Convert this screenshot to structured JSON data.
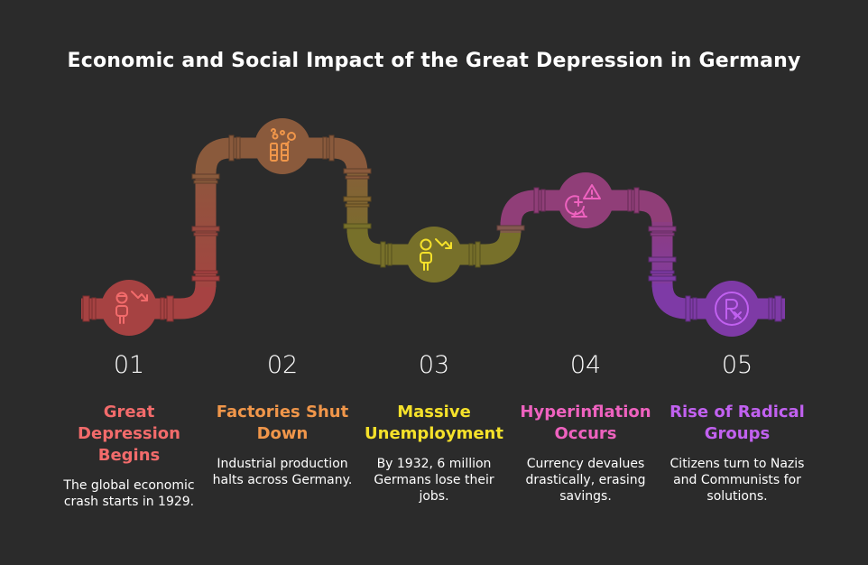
{
  "title": "Economic and Social Impact of the Great Depression in Germany",
  "steps": [
    {
      "number": "01",
      "heading": "Great Depression Begins",
      "description": "The global economic crash starts in 1929.",
      "color": "#f26b6b",
      "pipe": "#a64242",
      "icon": "declining-person-icon"
    },
    {
      "number": "02",
      "heading": "Factories Shut Down",
      "description": "Industrial production halts across Germany.",
      "color": "#f0964a",
      "pipe": "#8a5a3c",
      "icon": "factory-icon"
    },
    {
      "number": "03",
      "heading": "Massive Unemployment",
      "description": "By 1932, 6 million Germans lose their jobs.",
      "color": "#f5e12a",
      "pipe": "#77702a",
      "icon": "unemployed-person-icon"
    },
    {
      "number": "04",
      "heading": "Hyperinflation Occurs",
      "description": "Currency devalues drastically, erasing savings.",
      "color": "#ee62bf",
      "pipe": "#903e78",
      "icon": "currency-warning-icon"
    },
    {
      "number": "05",
      "heading": "Rise of Radical Groups",
      "description": "Citizens turn to Nazis and Communists for solutions.",
      "color": "#c161f0",
      "pipe": "#7e3aa6",
      "icon": "prescription-icon"
    }
  ]
}
